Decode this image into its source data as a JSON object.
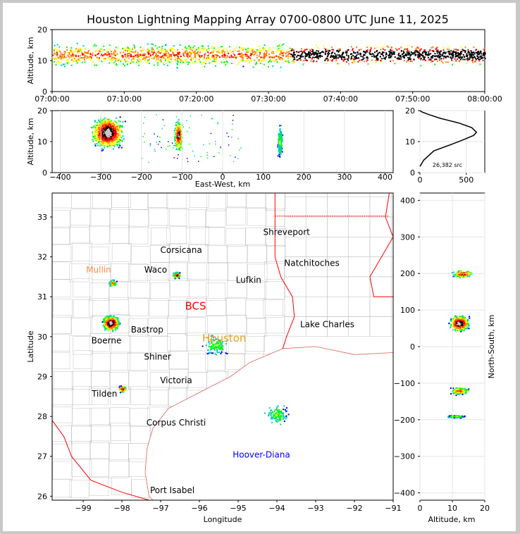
{
  "title": "Houston Lightning Mapping Array 0700-0800 UTC June 11, 2025",
  "colors": {
    "background": "#c8c8c8",
    "plot_bg": "#ffffff",
    "state_border": "#ff0000",
    "county_border": "#c0c0c0",
    "coast": "#e06060",
    "density_scale": [
      "#0000ff",
      "#00c8c8",
      "#00ff00",
      "#ffff00",
      "#ff8000",
      "#ff0000",
      "#000000",
      "#c8c8c8"
    ]
  },
  "chart_data": [
    {
      "id": "time_altitude",
      "type": "heatmap",
      "ylabel": "Altitude, km",
      "ylim": [
        0,
        20
      ],
      "yticks": [
        0,
        10,
        20
      ],
      "xticks": [
        "07:00:00",
        "07:10:00",
        "07:20:00",
        "07:30:00",
        "07:40:00",
        "07:50:00",
        "08:00:00"
      ],
      "xlim": [
        "07:00:00",
        "08:00:00"
      ],
      "band_core_altitude_km": 12,
      "dense_period": [
        "07:33:00",
        "08:00:00"
      ]
    },
    {
      "id": "ew_altitude",
      "type": "heatmap",
      "xlabel": "East-West, km",
      "ylabel": "Altitude, km",
      "xlim": [
        -420,
        420
      ],
      "ylim": [
        0,
        20
      ],
      "xticks": [
        "-400",
        "-300",
        "-200",
        "-100",
        "0",
        "100",
        "200",
        "300",
        "400"
      ],
      "yticks": [
        0,
        10,
        20
      ],
      "clusters": [
        {
          "x_km": -285,
          "altitude_km": 13,
          "intensity": "max"
        },
        {
          "x_km": -110,
          "altitude_km": 12,
          "intensity": "high"
        },
        {
          "x_km": 140,
          "altitude_km": 10,
          "intensity": "low"
        }
      ]
    },
    {
      "id": "altitude_histogram",
      "type": "line",
      "xlim": [
        0,
        700
      ],
      "ylim": [
        0,
        20
      ],
      "xticks": [
        "0",
        "500"
      ],
      "yticks": [
        0,
        10,
        20
      ],
      "annotation": "26,382 src",
      "x": [
        0,
        40,
        150,
        330,
        460,
        580,
        610,
        560,
        420,
        220,
        90,
        20,
        0
      ],
      "y": [
        2,
        4,
        7,
        9,
        10.5,
        12,
        13,
        14.5,
        16,
        17.5,
        18.8,
        19.6,
        20
      ]
    },
    {
      "id": "plan_view",
      "type": "heatmap",
      "xlabel": "Longitude",
      "ylabel": "Latitude",
      "xlim": [
        -99.8,
        -91
      ],
      "ylim": [
        25.9,
        33.6
      ],
      "xticks": [
        "−99",
        "−98",
        "−97",
        "−96",
        "−95",
        "−94",
        "−93",
        "−92",
        "−91"
      ],
      "yticks": [
        "26",
        "27",
        "28",
        "29",
        "30",
        "31",
        "32",
        "33"
      ],
      "city_labels": [
        {
          "name": "Shreveport",
          "lon": -93.75,
          "lat": 32.55,
          "color": "#000000"
        },
        {
          "name": "Corsicana",
          "lon": -96.47,
          "lat": 32.1,
          "color": "#000000"
        },
        {
          "name": "Natchitoches",
          "lon": -93.1,
          "lat": 31.77,
          "color": "#000000"
        },
        {
          "name": "Mullin",
          "lon": -98.6,
          "lat": 31.6,
          "color": "#ff8c40"
        },
        {
          "name": "Waco",
          "lon": -97.13,
          "lat": 31.6,
          "color": "#000000"
        },
        {
          "name": "Lufkin",
          "lon": -94.73,
          "lat": 31.35,
          "color": "#000000"
        },
        {
          "name": "BCS",
          "lon": -96.1,
          "lat": 30.68,
          "color": "#ff0000"
        },
        {
          "name": "Lake Charles",
          "lon": -92.7,
          "lat": 30.24,
          "color": "#000000"
        },
        {
          "name": "Bastrop",
          "lon": -97.35,
          "lat": 30.1,
          "color": "#000000"
        },
        {
          "name": "Houston",
          "lon": -95.36,
          "lat": 29.87,
          "color": "#e8a020"
        },
        {
          "name": "Boerne",
          "lon": -98.4,
          "lat": 29.83,
          "color": "#000000"
        },
        {
          "name": "Shiner",
          "lon": -97.08,
          "lat": 29.42,
          "color": "#000000"
        },
        {
          "name": "Victoria",
          "lon": -96.6,
          "lat": 28.83,
          "color": "#000000"
        },
        {
          "name": "Tilden",
          "lon": -98.45,
          "lat": 28.5,
          "color": "#000000"
        },
        {
          "name": "Corpus Christi",
          "lon": -96.6,
          "lat": 27.77,
          "color": "#000000"
        },
        {
          "name": "Hoover-Diana",
          "lon": -94.4,
          "lat": 26.97,
          "color": "#0000ff"
        },
        {
          "name": "Port Isabel",
          "lon": -96.7,
          "lat": 26.08,
          "color": "#000000"
        }
      ],
      "lightning_clusters": [
        {
          "lon": -98.3,
          "lat": 30.35,
          "intensity": "max"
        },
        {
          "lon": -98.25,
          "lat": 31.35,
          "intensity": "medium"
        },
        {
          "lon": -96.6,
          "lat": 31.55,
          "intensity": "high"
        },
        {
          "lon": -98.0,
          "lat": 28.7,
          "intensity": "high"
        },
        {
          "lon": -95.6,
          "lat": 29.8,
          "intensity": "low"
        },
        {
          "lon": -94.0,
          "lat": 28.05,
          "intensity": "low"
        }
      ]
    },
    {
      "id": "ns_altitude",
      "type": "heatmap",
      "xlabel": "Altitude, km",
      "ylabel": "North-South, km",
      "xlim": [
        0,
        20
      ],
      "ylim": [
        -420,
        420
      ],
      "xticks": [
        "0",
        "10",
        "20"
      ],
      "yticks": [
        "−400",
        "−300",
        "−200",
        "−100",
        "0",
        "100",
        "200",
        "300",
        "400"
      ],
      "clusters": [
        {
          "y_km": 200,
          "altitude_km": 13,
          "intensity": "high"
        },
        {
          "y_km": 65,
          "altitude_km": 12,
          "intensity": "max"
        },
        {
          "y_km": -120,
          "altitude_km": 12,
          "intensity": "medium"
        },
        {
          "y_km": -190,
          "altitude_km": 11,
          "intensity": "low"
        }
      ]
    }
  ]
}
